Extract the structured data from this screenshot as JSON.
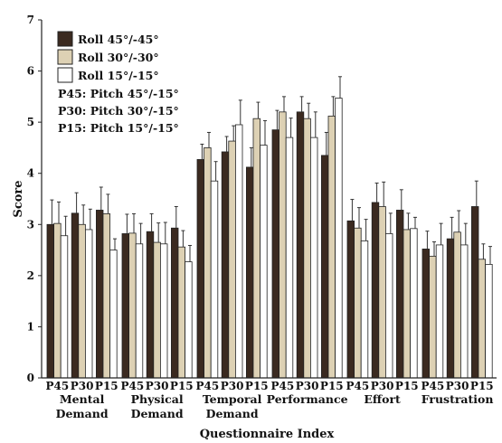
{
  "chart_data": {
    "type": "bar",
    "xlabel": "Questionnaire Index",
    "ylabel": "Score",
    "ylim": [
      0,
      7
    ],
    "yticks": [
      "0",
      "1",
      "2",
      "3",
      "4",
      "5",
      "6",
      "7"
    ],
    "grid": false,
    "legend_position": "top-left",
    "legend": [
      "Roll 45°/-45°",
      "Roll 30°/-30°",
      "Roll 15°/-15°",
      "P45: Pitch 45°/-15°",
      "P30: Pitch 30°/-15°",
      "P15: Pitch 15°/-15°"
    ],
    "series_colors": [
      "#3b2a20",
      "#ddd1b4",
      "#ffffff"
    ],
    "groups": [
      {
        "label_lines": [
          "Mental",
          "Demand"
        ],
        "subgroups": [
          {
            "label": "P45",
            "values": [
              3.0,
              3.02,
              2.78
            ],
            "errors": [
              0.48,
              0.42,
              0.38
            ]
          },
          {
            "label": "P30",
            "values": [
              3.22,
              3.0,
              2.9
            ],
            "errors": [
              0.4,
              0.38,
              0.4
            ]
          },
          {
            "label": "P15",
            "values": [
              3.28,
              3.21,
              2.5
            ],
            "errors": [
              0.45,
              0.38,
              0.22
            ]
          }
        ]
      },
      {
        "label_lines": [
          "Physical",
          "Demand"
        ],
        "subgroups": [
          {
            "label": "P45",
            "values": [
              2.82,
              2.83,
              2.62
            ],
            "errors": [
              0.38,
              0.38,
              0.4
            ]
          },
          {
            "label": "P30",
            "values": [
              2.86,
              2.65,
              2.62
            ],
            "errors": [
              0.35,
              0.38,
              0.42
            ]
          },
          {
            "label": "P15",
            "values": [
              2.93,
              2.56,
              2.27
            ],
            "errors": [
              0.42,
              0.32,
              0.32
            ]
          }
        ]
      },
      {
        "label_lines": [
          "Temporal",
          "Demand"
        ],
        "subgroups": [
          {
            "label": "P45",
            "values": [
              4.27,
              4.5,
              3.85
            ],
            "errors": [
              0.3,
              0.3,
              0.38
            ]
          },
          {
            "label": "P30",
            "values": [
              4.42,
              4.63,
              4.95
            ],
            "errors": [
              0.3,
              0.3,
              0.48
            ]
          },
          {
            "label": "P15",
            "values": [
              4.12,
              5.07,
              4.55
            ],
            "errors": [
              0.38,
              0.32,
              0.48
            ]
          }
        ]
      },
      {
        "label_lines": [
          "Performance"
        ],
        "subgroups": [
          {
            "label": "P45",
            "values": [
              4.85,
              5.2,
              4.7
            ],
            "errors": [
              0.38,
              0.3,
              0.38
            ]
          },
          {
            "label": "P30",
            "values": [
              5.2,
              5.07,
              4.7
            ],
            "errors": [
              0.3,
              0.3,
              0.5
            ]
          },
          {
            "label": "P15",
            "values": [
              4.35,
              5.12,
              5.47
            ],
            "errors": [
              0.45,
              0.38,
              0.42
            ]
          }
        ]
      },
      {
        "label_lines": [
          "Effort"
        ],
        "subgroups": [
          {
            "label": "P45",
            "values": [
              3.07,
              2.93,
              2.68
            ],
            "errors": [
              0.42,
              0.4,
              0.42
            ]
          },
          {
            "label": "P30",
            "values": [
              3.43,
              3.35,
              2.82
            ],
            "errors": [
              0.38,
              0.48,
              0.4
            ]
          },
          {
            "label": "P15",
            "values": [
              3.28,
              2.9,
              2.92
            ],
            "errors": [
              0.4,
              0.32,
              0.22
            ]
          }
        ]
      },
      {
        "label_lines": [
          "Frustration"
        ],
        "subgroups": [
          {
            "label": "P45",
            "values": [
              2.52,
              2.38,
              2.6
            ],
            "errors": [
              0.35,
              0.28,
              0.42
            ]
          },
          {
            "label": "P30",
            "values": [
              2.72,
              2.85,
              2.6
            ],
            "errors": [
              0.42,
              0.42,
              0.42
            ]
          },
          {
            "label": "P15",
            "values": [
              3.35,
              2.32,
              2.22
            ],
            "errors": [
              0.5,
              0.3,
              0.35
            ]
          }
        ]
      }
    ]
  }
}
